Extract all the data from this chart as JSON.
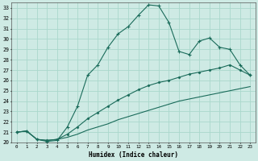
{
  "xlabel": "Humidex (Indice chaleur)",
  "bg_color": "#ceeae4",
  "line_color": "#1a6b5a",
  "grid_color": "#aad8cc",
  "xlim": [
    -0.5,
    23.5
  ],
  "ylim": [
    20,
    33.5
  ],
  "xticks": [
    0,
    1,
    2,
    3,
    4,
    5,
    6,
    7,
    8,
    9,
    10,
    11,
    12,
    13,
    14,
    15,
    16,
    17,
    18,
    19,
    20,
    21,
    22,
    23
  ],
  "yticks": [
    20,
    21,
    22,
    23,
    24,
    25,
    26,
    27,
    28,
    29,
    30,
    31,
    32,
    33
  ],
  "line1_x": [
    0,
    1,
    2,
    3,
    4,
    5,
    6,
    7,
    8,
    9,
    10,
    11,
    12,
    13,
    14,
    15,
    16,
    17,
    18,
    19,
    20,
    21,
    22,
    23
  ],
  "line1_y": [
    21.0,
    21.1,
    20.3,
    20.1,
    20.2,
    21.5,
    23.5,
    26.5,
    27.5,
    29.2,
    30.5,
    31.2,
    32.3,
    33.3,
    33.2,
    31.6,
    28.8,
    28.5,
    29.8,
    30.1,
    29.2,
    29.0,
    27.5,
    26.5
  ],
  "line2_x": [
    0,
    1,
    2,
    3,
    4,
    5,
    6,
    7,
    8,
    9,
    10,
    11,
    12,
    13,
    14,
    15,
    16,
    17,
    18,
    19,
    20,
    21,
    22,
    23
  ],
  "line2_y": [
    21.0,
    21.1,
    20.3,
    20.2,
    20.3,
    20.8,
    21.5,
    22.3,
    22.9,
    23.5,
    24.1,
    24.6,
    25.1,
    25.5,
    25.8,
    26.0,
    26.3,
    26.6,
    26.8,
    27.0,
    27.2,
    27.5,
    27.0,
    26.5
  ],
  "line3_x": [
    0,
    1,
    2,
    3,
    4,
    5,
    6,
    7,
    8,
    9,
    10,
    11,
    12,
    13,
    14,
    15,
    16,
    17,
    18,
    19,
    20,
    21,
    22,
    23
  ],
  "line3_y": [
    21.0,
    21.1,
    20.3,
    20.2,
    20.3,
    20.5,
    20.8,
    21.2,
    21.5,
    21.8,
    22.2,
    22.5,
    22.8,
    23.1,
    23.4,
    23.7,
    24.0,
    24.2,
    24.4,
    24.6,
    24.8,
    25.0,
    25.2,
    25.4
  ]
}
